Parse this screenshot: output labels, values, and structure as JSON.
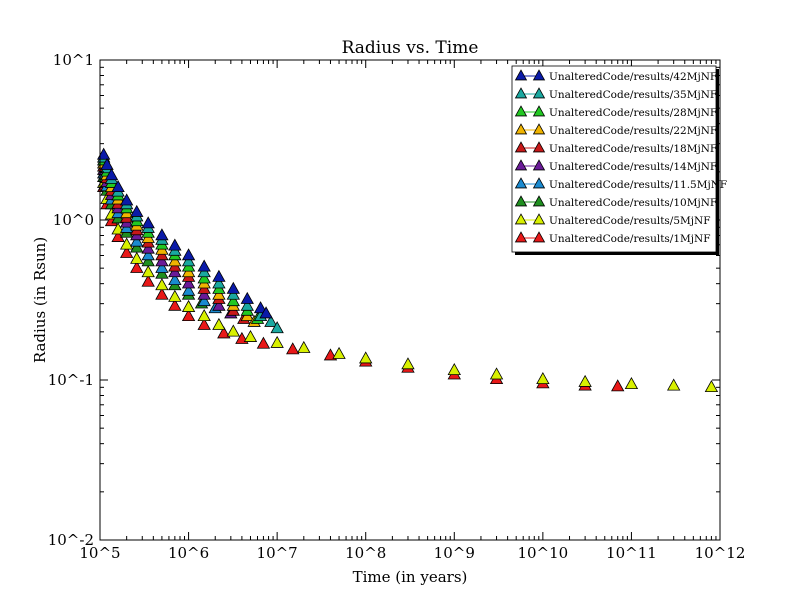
{
  "chart_data": {
    "type": "scatter",
    "title": "Radius vs. Time",
    "xlabel": "Time (in years)",
    "ylabel": "Radius (in Rsun)",
    "xscale": "log",
    "yscale": "log",
    "xlim": [
      100000,
      1000000000000
    ],
    "ylim": [
      0.01,
      10
    ],
    "x_ticks": [
      {
        "value": 100000,
        "label": "10^5"
      },
      {
        "value": 1000000,
        "label": "10^6"
      },
      {
        "value": 10000000,
        "label": "10^7"
      },
      {
        "value": 100000000,
        "label": "10^8"
      },
      {
        "value": 1000000000,
        "label": "10^9"
      },
      {
        "value": 10000000000,
        "label": "10^10"
      },
      {
        "value": 100000000000,
        "label": "10^11"
      },
      {
        "value": 1000000000000,
        "label": "10^12"
      }
    ],
    "y_ticks": [
      {
        "value": 0.01,
        "label": "10^-2"
      },
      {
        "value": 0.1,
        "label": "10^-1"
      },
      {
        "value": 1,
        "label": "10^0"
      },
      {
        "value": 10,
        "label": "10^1"
      }
    ],
    "grid": false,
    "legend_position": "top-right",
    "marker": "triangle-up",
    "series": [
      {
        "name": "UnalteredCode/results/42MjNF",
        "color": "#0a1aa8",
        "points": [
          [
            110000,
            2.55
          ],
          [
            120000,
            2.2
          ],
          [
            135000,
            1.9
          ],
          [
            160000,
            1.6
          ],
          [
            200000,
            1.32
          ],
          [
            260000,
            1.12
          ],
          [
            350000,
            0.95
          ],
          [
            500000,
            0.8
          ],
          [
            700000,
            0.69
          ],
          [
            1000000,
            0.6
          ],
          [
            1500000,
            0.51
          ],
          [
            2200000,
            0.44
          ],
          [
            3200000,
            0.37
          ],
          [
            4600000,
            0.32
          ],
          [
            6500000,
            0.28
          ],
          [
            7500000,
            0.26
          ]
        ]
      },
      {
        "name": "UnalteredCode/results/35MjNF",
        "color": "#1aa8a0",
        "points": [
          [
            110000,
            2.45
          ],
          [
            120000,
            2.1
          ],
          [
            135000,
            1.8
          ],
          [
            160000,
            1.5
          ],
          [
            200000,
            1.25
          ],
          [
            260000,
            1.05
          ],
          [
            350000,
            0.89
          ],
          [
            500000,
            0.75
          ],
          [
            700000,
            0.64
          ],
          [
            1000000,
            0.55
          ],
          [
            1500000,
            0.47
          ],
          [
            2200000,
            0.4
          ],
          [
            3200000,
            0.34
          ],
          [
            4600000,
            0.29
          ],
          [
            6500000,
            0.25
          ],
          [
            8500000,
            0.23
          ],
          [
            10000000,
            0.21
          ]
        ]
      },
      {
        "name": "UnalteredCode/results/28MjNF",
        "color": "#22c822",
        "points": [
          [
            110000,
            2.35
          ],
          [
            120000,
            2.0
          ],
          [
            135000,
            1.7
          ],
          [
            160000,
            1.42
          ],
          [
            200000,
            1.18
          ],
          [
            260000,
            0.98
          ],
          [
            350000,
            0.83
          ],
          [
            500000,
            0.7
          ],
          [
            700000,
            0.6
          ],
          [
            1000000,
            0.51
          ],
          [
            1500000,
            0.43
          ],
          [
            2200000,
            0.37
          ],
          [
            3200000,
            0.31
          ],
          [
            4600000,
            0.27
          ],
          [
            6000000,
            0.24
          ]
        ]
      },
      {
        "name": "UnalteredCode/results/22MjNF",
        "color": "#f0b400",
        "points": [
          [
            110000,
            2.25
          ],
          [
            120000,
            1.9
          ],
          [
            135000,
            1.6
          ],
          [
            160000,
            1.34
          ],
          [
            200000,
            1.1
          ],
          [
            260000,
            0.92
          ],
          [
            350000,
            0.77
          ],
          [
            500000,
            0.65
          ],
          [
            700000,
            0.55
          ],
          [
            1000000,
            0.47
          ],
          [
            1500000,
            0.4
          ],
          [
            2200000,
            0.34
          ],
          [
            3200000,
            0.29
          ],
          [
            4600000,
            0.25
          ],
          [
            5500000,
            0.23
          ]
        ]
      },
      {
        "name": "UnalteredCode/results/18MjNF",
        "color": "#c81818",
        "points": [
          [
            110000,
            2.15
          ],
          [
            120000,
            1.82
          ],
          [
            135000,
            1.52
          ],
          [
            160000,
            1.26
          ],
          [
            200000,
            1.03
          ],
          [
            260000,
            0.86
          ],
          [
            350000,
            0.72
          ],
          [
            500000,
            0.6
          ],
          [
            700000,
            0.51
          ],
          [
            1000000,
            0.44
          ],
          [
            1500000,
            0.37
          ],
          [
            2200000,
            0.32
          ],
          [
            3200000,
            0.27
          ],
          [
            4200000,
            0.24
          ]
        ]
      },
      {
        "name": "UnalteredCode/results/14MjNF",
        "color": "#6a1a98",
        "points": [
          [
            110000,
            2.05
          ],
          [
            120000,
            1.72
          ],
          [
            135000,
            1.43
          ],
          [
            160000,
            1.18
          ],
          [
            200000,
            0.96
          ],
          [
            260000,
            0.8
          ],
          [
            350000,
            0.66
          ],
          [
            500000,
            0.55
          ],
          [
            700000,
            0.47
          ],
          [
            1000000,
            0.4
          ],
          [
            1500000,
            0.34
          ],
          [
            2200000,
            0.29
          ],
          [
            3000000,
            0.26
          ]
        ]
      },
      {
        "name": "UnalteredCode/results/11.5MjNF",
        "color": "#1a8ad0",
        "points": [
          [
            110000,
            1.95
          ],
          [
            120000,
            1.62
          ],
          [
            135000,
            1.34
          ],
          [
            160000,
            1.1
          ],
          [
            200000,
            0.89
          ],
          [
            260000,
            0.73
          ],
          [
            350000,
            0.6
          ],
          [
            500000,
            0.5
          ],
          [
            700000,
            0.42
          ],
          [
            1000000,
            0.36
          ],
          [
            1500000,
            0.31
          ],
          [
            2000000,
            0.28
          ]
        ]
      },
      {
        "name": "UnalteredCode/results/10MjNF",
        "color": "#1f8f1f",
        "points": [
          [
            110000,
            1.85
          ],
          [
            120000,
            1.52
          ],
          [
            135000,
            1.25
          ],
          [
            160000,
            1.02
          ],
          [
            200000,
            0.83
          ],
          [
            260000,
            0.67
          ],
          [
            350000,
            0.55
          ],
          [
            500000,
            0.46
          ],
          [
            700000,
            0.39
          ],
          [
            1000000,
            0.34
          ],
          [
            1400000,
            0.3
          ]
        ]
      },
      {
        "name": "UnalteredCode/results/5MjNF",
        "color": "#d8f000",
        "points": [
          [
            110000,
            1.7
          ],
          [
            120000,
            1.35
          ],
          [
            135000,
            1.08
          ],
          [
            160000,
            0.87
          ],
          [
            200000,
            0.7
          ],
          [
            260000,
            0.57
          ],
          [
            350000,
            0.47
          ],
          [
            500000,
            0.39
          ],
          [
            700000,
            0.33
          ],
          [
            1000000,
            0.285
          ],
          [
            1500000,
            0.25
          ],
          [
            2200000,
            0.22
          ],
          [
            3200000,
            0.2
          ],
          [
            5000000,
            0.185
          ],
          [
            10000000,
            0.17
          ],
          [
            20000000,
            0.158
          ],
          [
            50000000,
            0.145
          ],
          [
            100000000,
            0.136
          ],
          [
            300000000,
            0.125
          ],
          [
            1000000000,
            0.115
          ],
          [
            3000000000,
            0.108
          ],
          [
            10000000000,
            0.101
          ],
          [
            30000000000,
            0.097
          ],
          [
            100000000000,
            0.094
          ],
          [
            300000000000,
            0.092
          ],
          [
            800000000000,
            0.09
          ]
        ]
      },
      {
        "name": "UnalteredCode/results/1MjNF",
        "color": "#e81818",
        "points": [
          [
            110000,
            1.6
          ],
          [
            120000,
            1.25
          ],
          [
            135000,
            0.98
          ],
          [
            160000,
            0.78
          ],
          [
            200000,
            0.62
          ],
          [
            260000,
            0.5
          ],
          [
            350000,
            0.41
          ],
          [
            500000,
            0.34
          ],
          [
            700000,
            0.29
          ],
          [
            1000000,
            0.25
          ],
          [
            1500000,
            0.22
          ],
          [
            2500000,
            0.195
          ],
          [
            4000000,
            0.18
          ],
          [
            7000000,
            0.168
          ],
          [
            15000000,
            0.155
          ],
          [
            40000000,
            0.142
          ],
          [
            100000000,
            0.13
          ],
          [
            300000000,
            0.119
          ],
          [
            1000000000,
            0.108
          ],
          [
            3000000000,
            0.101
          ],
          [
            10000000000,
            0.095
          ],
          [
            30000000000,
            0.092
          ],
          [
            70000000000,
            0.091
          ]
        ]
      }
    ]
  }
}
